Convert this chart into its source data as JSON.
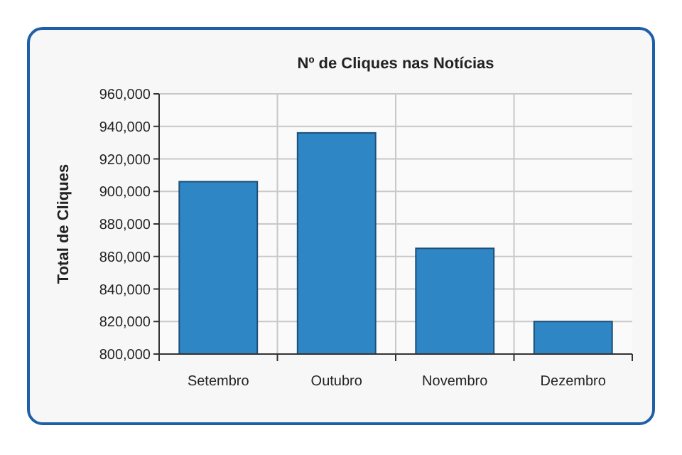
{
  "chart_data": {
    "type": "bar",
    "title": "Nº de Cliques nas Notícias",
    "ylabel": "Total de Cliques",
    "categories": [
      "Setembro",
      "Outubro",
      "Novembro",
      "Dezembro"
    ],
    "values": [
      906000,
      936000,
      865000,
      820000
    ],
    "color": "#2f86c4",
    "ylim": [
      800000,
      960000
    ],
    "yticks": [
      {
        "value": 800000,
        "label": "800,000"
      },
      {
        "value": 820000,
        "label": "820,000"
      },
      {
        "value": 840000,
        "label": "840,000"
      },
      {
        "value": 860000,
        "label": "860,000"
      },
      {
        "value": 880000,
        "label": "880,000"
      },
      {
        "value": 900000,
        "label": "900,000"
      },
      {
        "value": 920000,
        "label": "920,000"
      },
      {
        "value": 940000,
        "label": "940,000"
      },
      {
        "value": 960000,
        "label": "960,000"
      }
    ],
    "grid": true
  }
}
